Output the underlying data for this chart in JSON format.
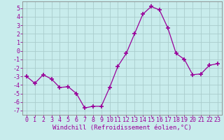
{
  "x": [
    0,
    1,
    2,
    3,
    4,
    5,
    6,
    7,
    8,
    9,
    10,
    11,
    12,
    13,
    14,
    15,
    16,
    17,
    18,
    19,
    20,
    21,
    22,
    23
  ],
  "y": [
    -3.0,
    -3.8,
    -2.8,
    -3.3,
    -4.3,
    -4.2,
    -5.0,
    -6.7,
    -6.5,
    -6.5,
    -4.3,
    -1.8,
    -0.3,
    2.0,
    4.3,
    5.2,
    4.8,
    2.7,
    -0.3,
    -1.0,
    -2.8,
    -2.7,
    -1.7,
    -1.5
  ],
  "line_color": "#990099",
  "marker": "+",
  "marker_size": 4,
  "marker_lw": 1.2,
  "bg_color": "#c8ecec",
  "grid_color": "#aacccc",
  "xlabel": "Windchill (Refroidissement éolien,°C)",
  "ylim": [
    -7.5,
    5.8
  ],
  "xlim": [
    -0.5,
    23.5
  ],
  "yticks": [
    -7,
    -6,
    -5,
    -4,
    -3,
    -2,
    -1,
    0,
    1,
    2,
    3,
    4,
    5
  ],
  "xticks": [
    0,
    1,
    2,
    3,
    4,
    5,
    6,
    7,
    8,
    9,
    10,
    11,
    12,
    13,
    14,
    15,
    16,
    17,
    18,
    19,
    20,
    21,
    22,
    23
  ],
  "tick_color": "#990099",
  "label_color": "#990099",
  "spine_color": "#888888",
  "font_size": 6.0,
  "xlabel_font_size": 6.5
}
